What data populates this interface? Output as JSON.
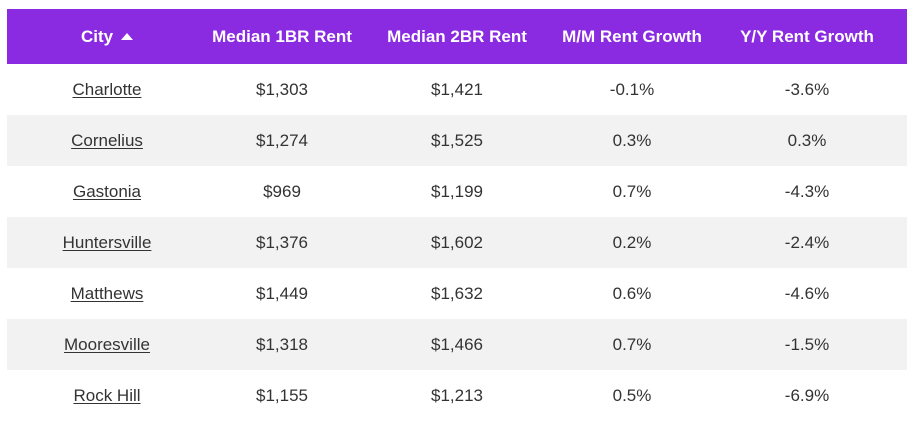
{
  "table": {
    "headers": [
      {
        "label": "City",
        "sort": "ascending"
      },
      {
        "label": "Median 1BR Rent"
      },
      {
        "label": "Median 2BR Rent"
      },
      {
        "label": "M/M Rent Growth"
      },
      {
        "label": "Y/Y Rent Growth"
      }
    ],
    "rows": [
      {
        "city": "Charlotte",
        "rent_1br": "$1,303",
        "rent_2br": "$1,421",
        "mm_growth": "-0.1%",
        "yy_growth": "-3.6%"
      },
      {
        "city": "Cornelius",
        "rent_1br": "$1,274",
        "rent_2br": "$1,525",
        "mm_growth": "0.3%",
        "yy_growth": "0.3%"
      },
      {
        "city": "Gastonia",
        "rent_1br": "$969",
        "rent_2br": "$1,199",
        "mm_growth": "0.7%",
        "yy_growth": "-4.3%"
      },
      {
        "city": "Huntersville",
        "rent_1br": "$1,376",
        "rent_2br": "$1,602",
        "mm_growth": "0.2%",
        "yy_growth": "-2.4%"
      },
      {
        "city": "Matthews",
        "rent_1br": "$1,449",
        "rent_2br": "$1,632",
        "mm_growth": "0.6%",
        "yy_growth": "-4.6%"
      },
      {
        "city": "Mooresville",
        "rent_1br": "$1,318",
        "rent_2br": "$1,466",
        "mm_growth": "0.7%",
        "yy_growth": "-1.5%"
      },
      {
        "city": "Rock Hill",
        "rent_1br": "$1,155",
        "rent_2br": "$1,213",
        "mm_growth": "0.5%",
        "yy_growth": "-6.9%"
      }
    ]
  },
  "colors": {
    "header_bg": "#8a2be2",
    "header_text": "#ffffff",
    "row_alt_bg": "#f2f2f2",
    "text": "#333333"
  },
  "icons": {
    "sort": "sort-ascending-icon"
  }
}
